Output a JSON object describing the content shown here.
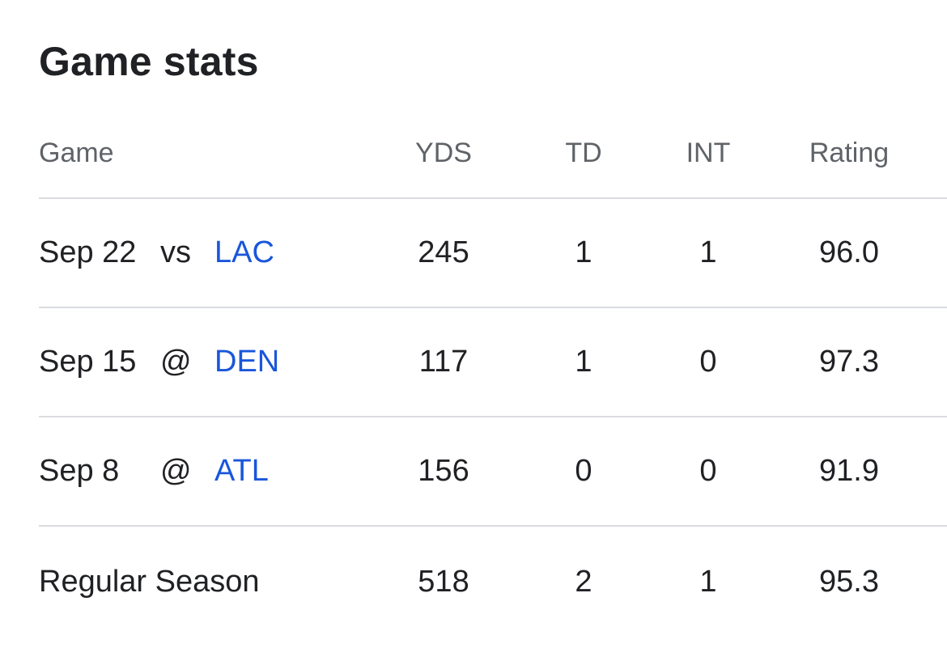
{
  "title": "Game stats",
  "columns": {
    "game": "Game",
    "yds": "YDS",
    "td": "TD",
    "int": "INT",
    "rating": "Rating"
  },
  "games": [
    {
      "date": "Sep 22",
      "location": "vs",
      "team": "LAC",
      "yds": "245",
      "td": "1",
      "int": "1",
      "rating": "96.0"
    },
    {
      "date": "Sep 15",
      "location": "@",
      "team": "DEN",
      "yds": "117",
      "td": "1",
      "int": "0",
      "rating": "97.3"
    },
    {
      "date": "Sep 8",
      "location": "@",
      "team": "ATL",
      "yds": "156",
      "td": "0",
      "int": "0",
      "rating": "91.9"
    }
  ],
  "total": {
    "label": "Regular Season",
    "yds": "518",
    "td": "2",
    "int": "1",
    "rating": "95.3"
  },
  "colors": {
    "link": "#1a56db",
    "text": "#202124",
    "muted": "#5f6368",
    "divider": "#dadce0"
  }
}
